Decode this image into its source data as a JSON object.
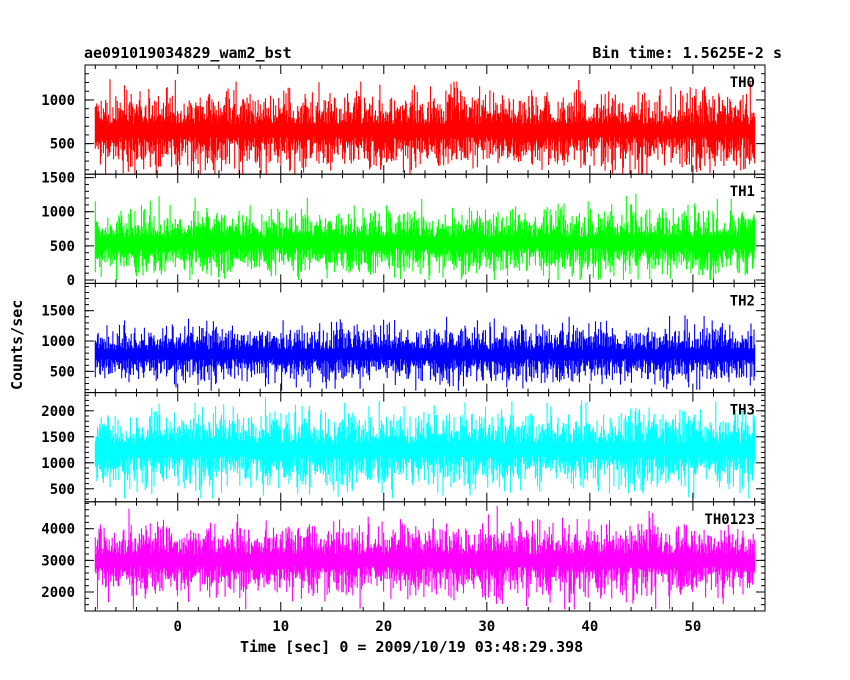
{
  "header": {
    "title": "ae091019034829_wam2_bst",
    "bin_time": "Bin time: 1.5625E-2 s"
  },
  "axes": {
    "xlabel": "Time [sec] 0 = 2009/10/19 03:48:29.398",
    "ylabel": "Counts/sec"
  },
  "chart_data": {
    "type": "line",
    "title": "ae091019034829_wam2_bst",
    "subtitle": "Bin time: 1.5625E-2 s",
    "xlabel": "Time [sec] 0 = 2009/10/19 03:48:29.398",
    "ylabel": "Counts/sec",
    "xlim": [
      -9,
      57
    ],
    "x_range_data": [
      -8,
      56
    ],
    "xticks": [
      0,
      10,
      20,
      30,
      40,
      50
    ],
    "grid": false,
    "panels": [
      {
        "name": "TH0",
        "color": "#ff0000",
        "ylim": [
          150,
          1400
        ],
        "yticks": [
          500,
          1000
        ],
        "mean": 650,
        "noise_low": 430,
        "noise_high": 1350,
        "peak_low": 150,
        "peak_high": 1400
      },
      {
        "name": "TH1",
        "color": "#00ff00",
        "ylim": [
          -50,
          1550
        ],
        "yticks": [
          0,
          500,
          1000,
          1500
        ],
        "mean": 550,
        "noise_low": 150,
        "noise_high": 1150,
        "peak_low": 0,
        "peak_high": 1550
      },
      {
        "name": "TH2",
        "color": "#0000ff",
        "ylim": [
          150,
          1950
        ],
        "yticks": [
          500,
          1000,
          1500
        ],
        "mean": 780,
        "noise_low": 320,
        "noise_high": 1300,
        "peak_low": 180,
        "peak_high": 1850
      },
      {
        "name": "TH3",
        "color": "#00ffff",
        "ylim": [
          250,
          2350
        ],
        "yticks": [
          500,
          1000,
          1500,
          2000
        ],
        "mean": 1250,
        "noise_low": 550,
        "noise_high": 2100,
        "peak_low": 320,
        "peak_high": 2300
      },
      {
        "name": "TH0123",
        "color": "#ff00ff",
        "ylim": [
          1400,
          4850
        ],
        "yticks": [
          2000,
          3000,
          4000
        ],
        "mean": 3000,
        "noise_low": 1900,
        "noise_high": 4300,
        "peak_low": 1450,
        "peak_high": 4750
      }
    ]
  }
}
